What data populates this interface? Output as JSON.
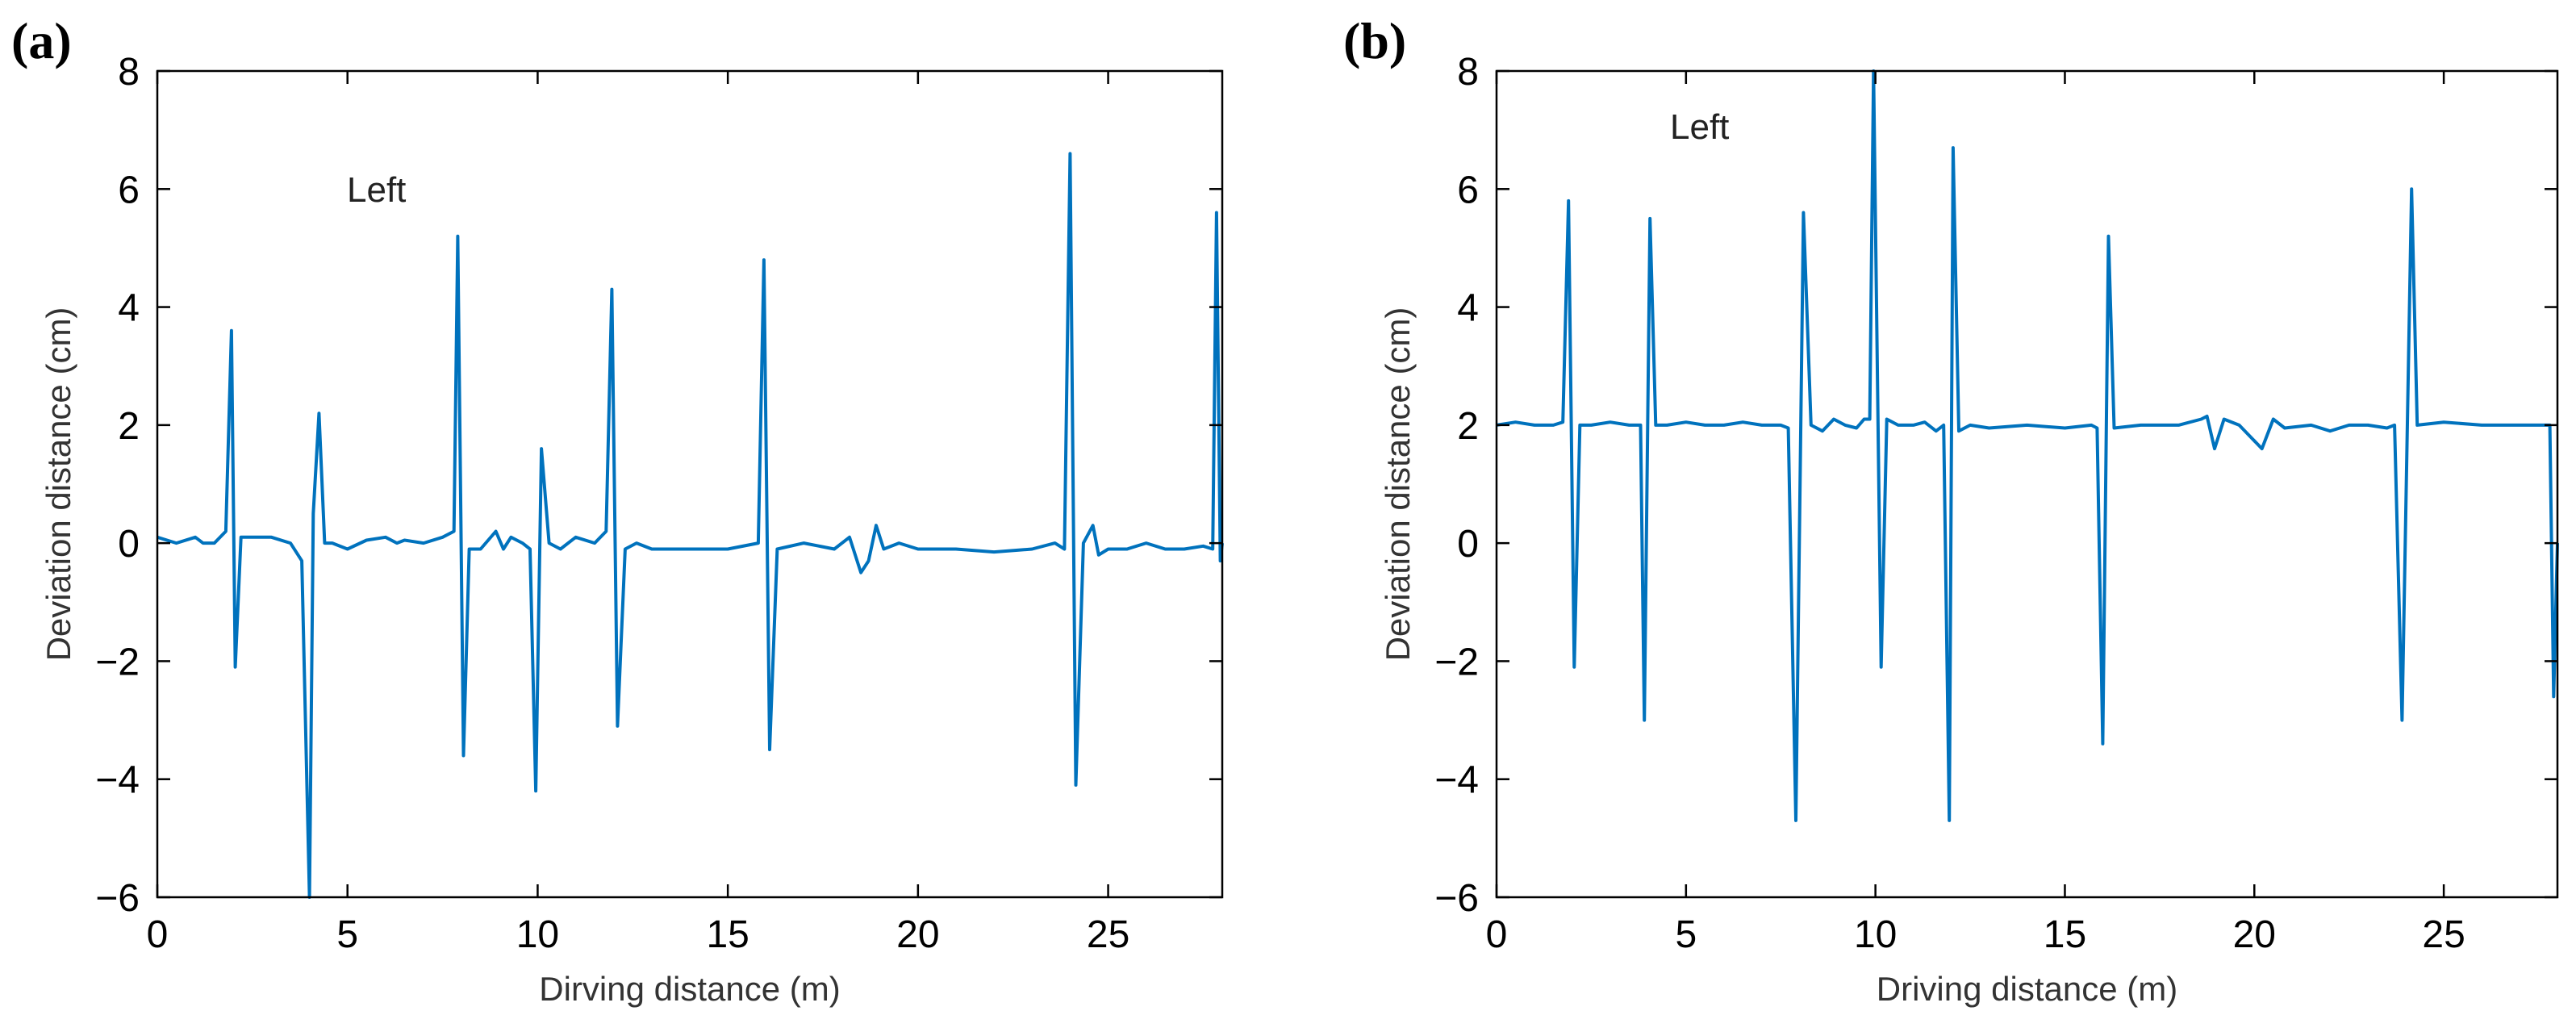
{
  "chart_data": [
    {
      "type": "line",
      "panel_label": "(a)",
      "title": "",
      "xlabel": "Dirving distance (m)",
      "ylabel": "Deviation distance (cm)",
      "xlim": [
        0,
        28
      ],
      "ylim": [
        -6,
        8
      ],
      "xticks": [
        0,
        5,
        10,
        15,
        20,
        25
      ],
      "yticks": [
        -6,
        -4,
        -2,
        0,
        2,
        4,
        6,
        8
      ],
      "grid": false,
      "annotation": "Left",
      "series": [
        {
          "name": "Left",
          "color": "#0072BD",
          "x": [
            0,
            0.5,
            1.0,
            1.2,
            1.5,
            1.8,
            1.95,
            2.05,
            2.2,
            2.5,
            3.0,
            3.5,
            3.8,
            4.0,
            4.1,
            4.25,
            4.4,
            4.6,
            5.0,
            5.5,
            6.0,
            6.3,
            6.5,
            7.0,
            7.5,
            7.8,
            7.9,
            8.05,
            8.2,
            8.5,
            8.9,
            9.1,
            9.3,
            9.6,
            9.8,
            9.95,
            10.1,
            10.3,
            10.6,
            11.0,
            11.5,
            11.8,
            11.95,
            12.1,
            12.3,
            12.6,
            13.0,
            14.0,
            15.0,
            15.8,
            15.95,
            16.1,
            16.3,
            17.0,
            17.8,
            18.2,
            18.5,
            18.7,
            18.9,
            19.1,
            19.5,
            20.0,
            21.0,
            22.0,
            23.0,
            23.6,
            23.85,
            24.0,
            24.15,
            24.35,
            24.6,
            24.75,
            25.0,
            25.5,
            26.0,
            26.5,
            27.0,
            27.5,
            27.75,
            27.85,
            27.95,
            28.0
          ],
          "y": [
            0.1,
            0.0,
            0.1,
            0.0,
            0.0,
            0.2,
            3.6,
            -2.1,
            0.1,
            0.1,
            0.1,
            0.0,
            -0.3,
            -6.0,
            0.5,
            2.2,
            0.0,
            0.0,
            -0.1,
            0.05,
            0.1,
            0.0,
            0.05,
            0.0,
            0.1,
            0.2,
            5.2,
            -3.6,
            -0.1,
            -0.1,
            0.2,
            -0.1,
            0.1,
            0.0,
            -0.1,
            -4.2,
            1.6,
            0.0,
            -0.1,
            0.1,
            0.0,
            0.2,
            4.3,
            -3.1,
            -0.1,
            0.0,
            -0.1,
            -0.1,
            -0.1,
            0.0,
            4.8,
            -3.5,
            -0.1,
            0.0,
            -0.1,
            0.1,
            -0.5,
            -0.3,
            0.3,
            -0.1,
            0.0,
            -0.1,
            -0.1,
            -0.15,
            -0.1,
            0.0,
            -0.1,
            6.6,
            -4.1,
            0.0,
            0.3,
            -0.2,
            -0.1,
            -0.1,
            0.0,
            -0.1,
            -0.1,
            -0.05,
            -0.1,
            5.6,
            -0.3,
            0.0
          ]
        }
      ]
    },
    {
      "type": "line",
      "panel_label": "(b)",
      "title": "",
      "xlabel": "Driving distance (m)",
      "ylabel": "Deviation distance (cm)",
      "xlim": [
        0,
        28
      ],
      "ylim": [
        -6,
        8
      ],
      "xticks": [
        0,
        5,
        10,
        15,
        20,
        25
      ],
      "yticks": [
        -6,
        -4,
        -2,
        0,
        2,
        4,
        6,
        8
      ],
      "grid": false,
      "annotation": "Left",
      "series": [
        {
          "name": "Left",
          "color": "#0072BD",
          "x": [
            0,
            0.5,
            1.0,
            1.5,
            1.75,
            1.9,
            2.05,
            2.2,
            2.5,
            3.0,
            3.5,
            3.8,
            3.9,
            4.05,
            4.2,
            4.5,
            5.0,
            5.5,
            6.0,
            6.5,
            7.0,
            7.5,
            7.7,
            7.9,
            8.1,
            8.3,
            8.6,
            8.9,
            9.2,
            9.5,
            9.7,
            9.85,
            9.95,
            10.15,
            10.3,
            10.6,
            11.0,
            11.3,
            11.6,
            11.8,
            11.95,
            12.05,
            12.2,
            12.5,
            13.0,
            14.0,
            15.0,
            15.7,
            15.85,
            16.0,
            16.15,
            16.3,
            17.0,
            18.0,
            18.6,
            18.75,
            18.95,
            19.2,
            19.6,
            19.9,
            20.2,
            20.5,
            20.8,
            21.5,
            22.0,
            22.5,
            23.0,
            23.5,
            23.7,
            23.9,
            24.15,
            24.3,
            25.0,
            26.0,
            27.0,
            27.5,
            27.7,
            27.8,
            27.9,
            28.0
          ],
          "y": [
            2.0,
            2.05,
            2.0,
            2.0,
            2.05,
            5.8,
            -2.1,
            2.0,
            2.0,
            2.05,
            2.0,
            2.0,
            -3.0,
            5.5,
            2.0,
            2.0,
            2.05,
            2.0,
            2.0,
            2.05,
            2.0,
            2.0,
            1.95,
            -4.7,
            5.6,
            2.0,
            1.9,
            2.1,
            2.0,
            1.95,
            2.1,
            2.1,
            8.0,
            -2.1,
            2.1,
            2.0,
            2.0,
            2.05,
            1.9,
            2.0,
            -4.7,
            6.7,
            1.9,
            2.0,
            1.95,
            2.0,
            1.95,
            2.0,
            1.95,
            -3.4,
            5.2,
            1.95,
            2.0,
            2.0,
            2.1,
            2.15,
            1.6,
            2.1,
            2.0,
            1.8,
            1.6,
            2.1,
            1.95,
            2.0,
            1.9,
            2.0,
            2.0,
            1.95,
            2.0,
            -3.0,
            6.0,
            2.0,
            2.05,
            2.0,
            2.0,
            2.0,
            2.0,
            2.0,
            -2.6,
            0.0
          ]
        }
      ]
    }
  ]
}
